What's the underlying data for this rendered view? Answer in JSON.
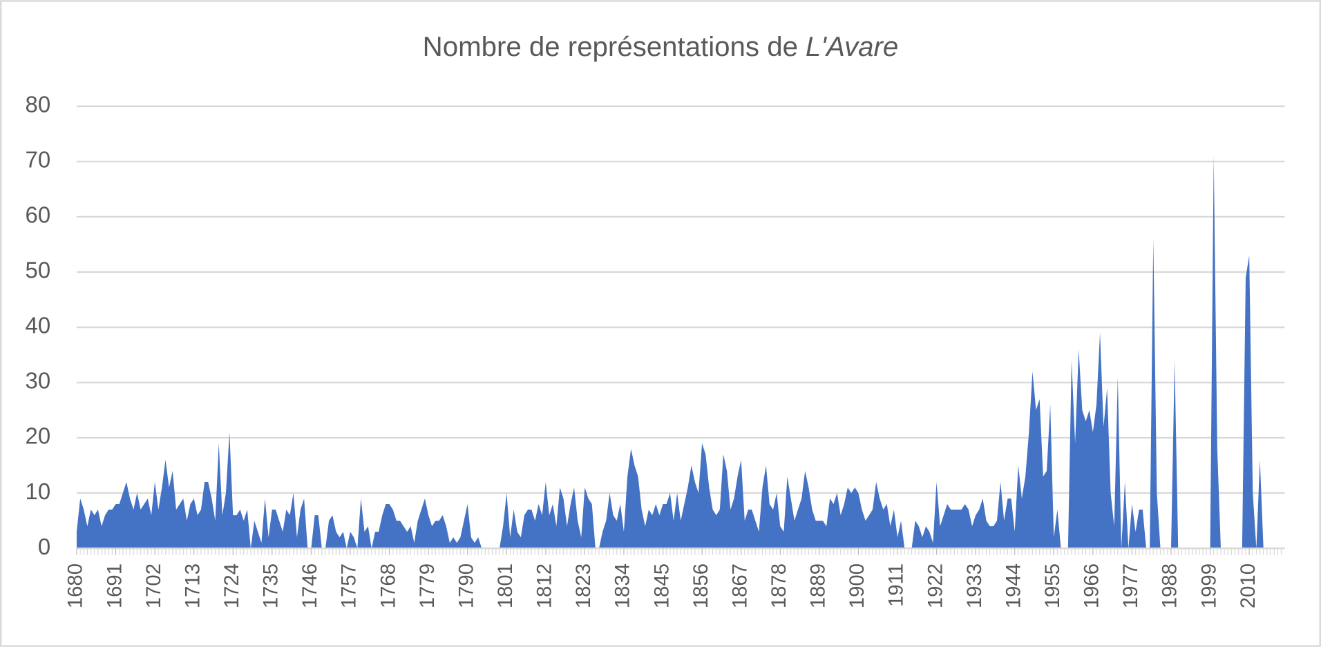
{
  "chart_data": {
    "type": "area",
    "title": [
      "Nombre de représentations de",
      "L'Avare"
    ],
    "color": "#4472c4",
    "grid": true,
    "ylim": [
      0,
      80
    ],
    "yticks": [
      0,
      10,
      20,
      30,
      40,
      50,
      60,
      70,
      80
    ],
    "xlim": [
      1680,
      2020
    ],
    "xticks": [
      1680,
      1691,
      1702,
      1713,
      1724,
      1735,
      1746,
      1757,
      1768,
      1779,
      1790,
      1801,
      1812,
      1823,
      1834,
      1845,
      1856,
      1867,
      1878,
      1889,
      1900,
      1911,
      1922,
      1933,
      1944,
      1955,
      1966,
      1977,
      1988,
      1999,
      2010
    ],
    "x": [
      1680,
      1681,
      1682,
      1683,
      1684,
      1685,
      1686,
      1687,
      1688,
      1689,
      1690,
      1691,
      1692,
      1693,
      1694,
      1695,
      1696,
      1697,
      1698,
      1699,
      1700,
      1701,
      1702,
      1703,
      1704,
      1705,
      1706,
      1707,
      1708,
      1709,
      1710,
      1711,
      1712,
      1713,
      1714,
      1715,
      1716,
      1717,
      1718,
      1719,
      1720,
      1721,
      1722,
      1723,
      1724,
      1725,
      1726,
      1727,
      1728,
      1729,
      1730,
      1731,
      1732,
      1733,
      1734,
      1735,
      1736,
      1737,
      1738,
      1739,
      1740,
      1741,
      1742,
      1743,
      1744,
      1745,
      1746,
      1747,
      1748,
      1749,
      1750,
      1751,
      1752,
      1753,
      1754,
      1755,
      1756,
      1757,
      1758,
      1759,
      1760,
      1761,
      1762,
      1763,
      1764,
      1765,
      1766,
      1767,
      1768,
      1769,
      1770,
      1771,
      1772,
      1773,
      1774,
      1775,
      1776,
      1777,
      1778,
      1779,
      1780,
      1781,
      1782,
      1783,
      1784,
      1785,
      1786,
      1787,
      1788,
      1789,
      1790,
      1791,
      1792,
      1793,
      1794,
      1795,
      1796,
      1797,
      1798,
      1799,
      1800,
      1801,
      1802,
      1803,
      1804,
      1805,
      1806,
      1807,
      1808,
      1809,
      1810,
      1811,
      1812,
      1813,
      1814,
      1815,
      1816,
      1817,
      1818,
      1819,
      1820,
      1821,
      1822,
      1823,
      1824,
      1825,
      1826,
      1827,
      1828,
      1829,
      1830,
      1831,
      1832,
      1833,
      1834,
      1835,
      1836,
      1837,
      1838,
      1839,
      1840,
      1841,
      1842,
      1843,
      1844,
      1845,
      1846,
      1847,
      1848,
      1849,
      1850,
      1851,
      1852,
      1853,
      1854,
      1855,
      1856,
      1857,
      1858,
      1859,
      1860,
      1861,
      1862,
      1863,
      1864,
      1865,
      1866,
      1867,
      1868,
      1869,
      1870,
      1871,
      1872,
      1873,
      1874,
      1875,
      1876,
      1877,
      1878,
      1879,
      1880,
      1881,
      1882,
      1883,
      1884,
      1885,
      1886,
      1887,
      1888,
      1889,
      1890,
      1891,
      1892,
      1893,
      1894,
      1895,
      1896,
      1897,
      1898,
      1899,
      1900,
      1901,
      1902,
      1903,
      1904,
      1905,
      1906,
      1907,
      1908,
      1909,
      1910,
      1911,
      1912,
      1913,
      1914,
      1915,
      1916,
      1917,
      1918,
      1919,
      1920,
      1921,
      1922,
      1923,
      1924,
      1925,
      1926,
      1927,
      1928,
      1929,
      1930,
      1931,
      1932,
      1933,
      1934,
      1935,
      1936,
      1937,
      1938,
      1939,
      1940,
      1941,
      1942,
      1943,
      1944,
      1945,
      1946,
      1947,
      1948,
      1949,
      1950,
      1951,
      1952,
      1953,
      1954,
      1955,
      1956,
      1957,
      1958,
      1959,
      1960,
      1961,
      1962,
      1963,
      1964,
      1965,
      1966,
      1967,
      1968,
      1969,
      1970,
      1971,
      1972,
      1973,
      1974,
      1975,
      1976,
      1977,
      1978,
      1979,
      1980,
      1981,
      1982,
      1983,
      1984,
      1985,
      1986,
      1987,
      1988,
      1989,
      1990,
      1991,
      1992,
      1993,
      1994,
      1995,
      1996,
      1997,
      1998,
      1999,
      2000,
      2001,
      2002,
      2003,
      2004,
      2005,
      2006,
      2007,
      2008,
      2009,
      2010,
      2011,
      2012,
      2013,
      2014,
      2015,
      2016,
      2017,
      2018,
      2019
    ],
    "values": [
      3,
      9,
      7,
      4,
      7,
      6,
      7,
      4,
      6,
      7,
      7,
      8,
      8,
      10,
      12,
      9,
      7,
      10,
      7,
      8,
      9,
      6,
      12,
      7,
      11,
      16,
      11,
      14,
      7,
      8,
      9,
      5,
      8,
      9,
      6,
      7,
      12,
      12,
      9,
      5,
      19,
      6,
      10,
      21,
      6,
      6,
      7,
      5,
      7,
      0,
      5,
      3,
      1,
      9,
      2,
      7,
      7,
      5,
      3,
      7,
      6,
      10,
      2,
      7,
      9,
      0,
      0,
      6,
      6,
      0,
      0,
      5,
      6,
      3,
      2,
      3,
      0,
      3,
      2,
      0,
      9,
      3,
      4,
      0,
      3,
      3,
      6,
      8,
      8,
      7,
      5,
      5,
      4,
      3,
      4,
      1,
      5,
      7,
      9,
      6,
      4,
      5,
      5,
      6,
      4,
      1,
      2,
      1,
      2,
      5,
      8,
      2,
      1,
      2,
      0,
      0,
      0,
      0,
      0,
      0,
      4,
      10,
      2,
      7,
      3,
      2,
      6,
      7,
      7,
      5,
      8,
      6,
      12,
      6,
      8,
      4,
      11,
      9,
      4,
      8,
      11,
      5,
      2,
      11,
      9,
      8,
      0,
      0,
      3,
      5,
      10,
      6,
      5,
      8,
      3,
      13,
      18,
      15,
      13,
      7,
      4,
      7,
      6,
      8,
      6,
      8,
      8,
      10,
      5,
      10,
      5,
      8,
      11,
      15,
      12,
      10,
      19,
      17,
      11,
      7,
      6,
      7,
      17,
      14,
      7,
      9,
      13,
      16,
      5,
      7,
      7,
      5,
      3,
      11,
      15,
      8,
      7,
      10,
      4,
      3,
      13,
      9,
      5,
      7,
      9,
      14,
      11,
      7,
      5,
      5,
      5,
      4,
      9,
      8,
      10,
      6,
      8,
      11,
      10,
      11,
      10,
      7,
      5,
      6,
      7,
      12,
      9,
      7,
      8,
      4,
      7,
      2,
      5,
      0,
      0,
      0,
      5,
      4,
      2,
      4,
      3,
      1,
      12,
      4,
      6,
      8,
      7,
      7,
      7,
      7,
      8,
      7,
      4,
      6,
      7,
      9,
      5,
      4,
      4,
      5,
      12,
      5,
      9,
      9,
      3,
      15,
      9,
      13,
      21,
      32,
      25,
      27,
      13,
      14,
      26,
      2,
      7,
      0,
      0,
      0,
      34,
      19,
      36,
      25,
      23,
      25,
      21,
      26,
      39,
      22,
      29,
      10,
      4,
      31,
      0,
      12,
      0,
      8,
      3,
      7,
      7,
      0,
      0,
      56,
      10,
      0,
      0,
      0,
      0,
      34,
      0,
      0,
      0,
      0,
      0,
      0,
      0,
      0,
      0,
      0,
      71,
      18,
      0,
      0,
      0,
      0,
      0,
      0,
      0,
      49,
      53,
      10,
      0,
      16,
      0,
      0,
      0,
      0,
      0,
      0
    ]
  }
}
